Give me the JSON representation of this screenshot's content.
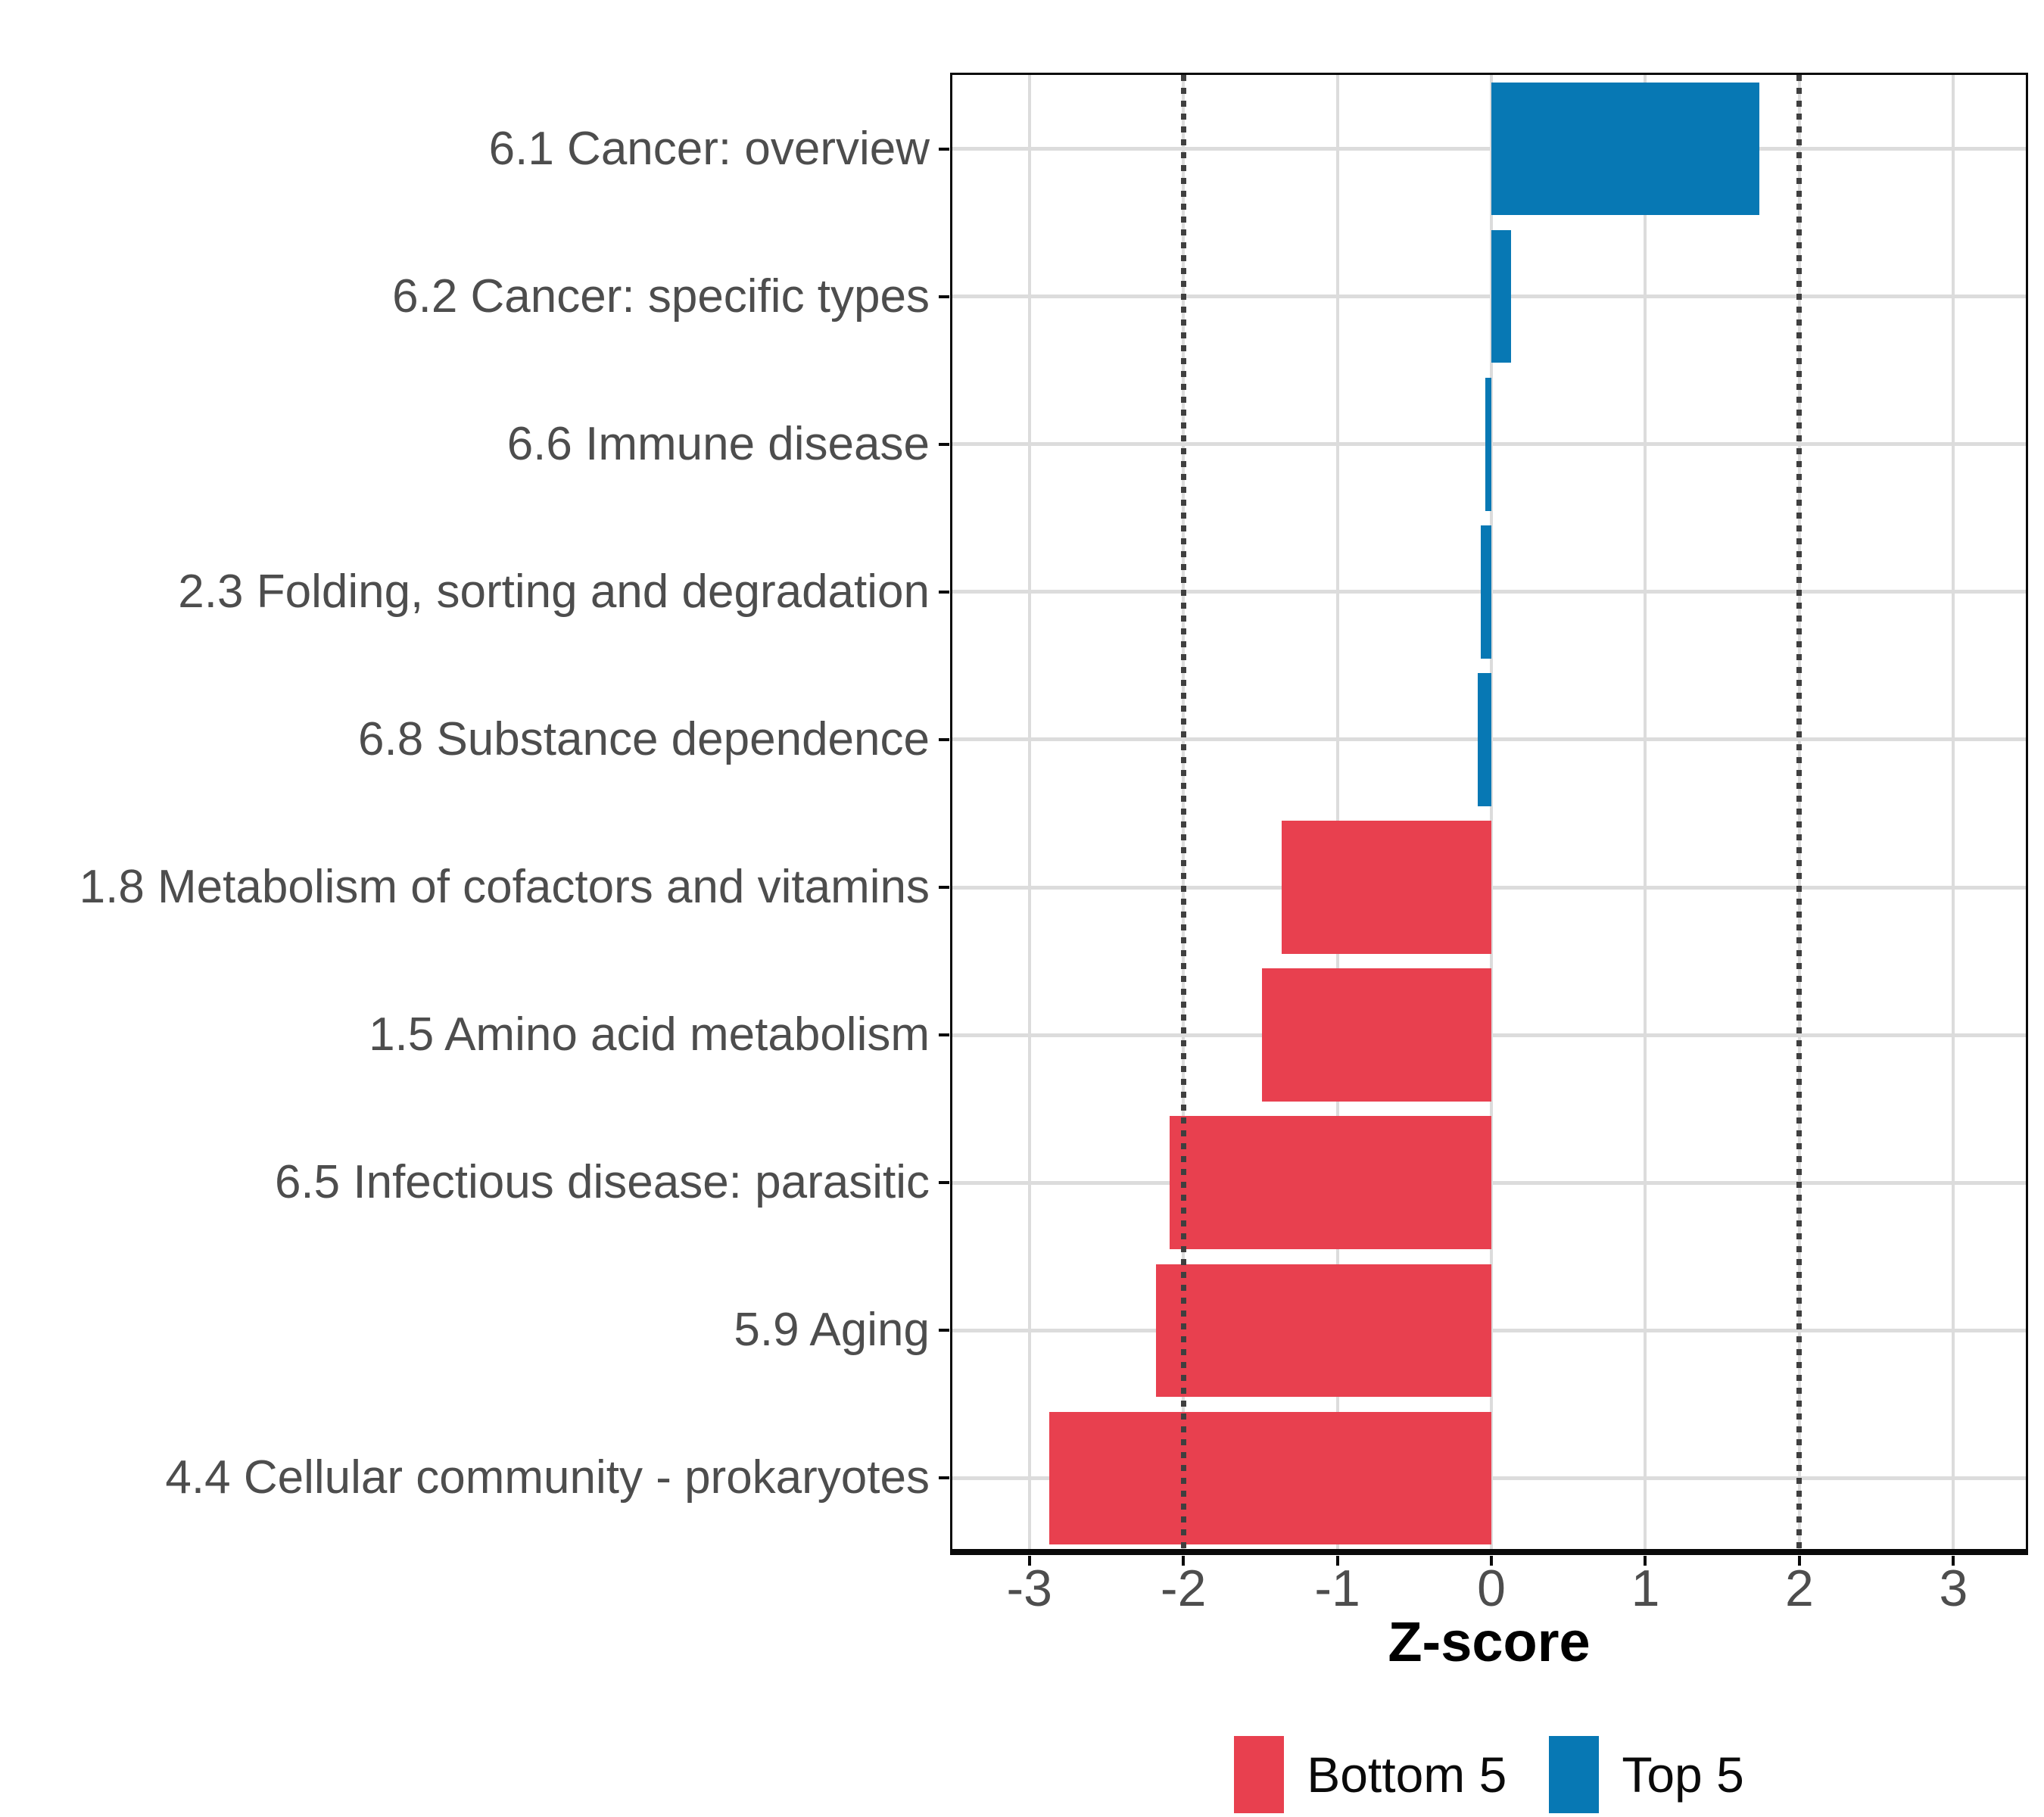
{
  "chart_data": {
    "type": "bar",
    "orientation": "horizontal",
    "title": "",
    "xlabel": "Z-score",
    "ylabel": "",
    "xlim": [
      -3.5,
      3.47
    ],
    "x_ticks": [
      -3,
      -2,
      -1,
      0,
      1,
      2,
      3
    ],
    "grid": true,
    "reference_lines": {
      "values": [
        -2,
        2
      ],
      "style": "dotted",
      "color": "#3f3f3f"
    },
    "legend_position": "bottom",
    "groups": [
      {
        "name": "Bottom 5",
        "color": "#E8404F"
      },
      {
        "name": "Top 5",
        "color": "#0778B4"
      }
    ],
    "bars": [
      {
        "label": "6.1 Cancer: overview",
        "value": 1.74,
        "group": "Top 5"
      },
      {
        "label": "6.2 Cancer: specific types",
        "value": 0.13,
        "group": "Top 5"
      },
      {
        "label": "6.6 Immune disease",
        "value": -0.04,
        "group": "Top 5"
      },
      {
        "label": "2.3 Folding, sorting and degradation",
        "value": -0.07,
        "group": "Top 5"
      },
      {
        "label": "6.8 Substance dependence",
        "value": -0.09,
        "group": "Top 5"
      },
      {
        "label": "1.8 Metabolism of cofactors and vitamins",
        "value": -1.36,
        "group": "Bottom 5"
      },
      {
        "label": "1.5 Amino acid metabolism",
        "value": -1.49,
        "group": "Bottom 5"
      },
      {
        "label": "6.5 Infectious disease: parasitic",
        "value": -2.09,
        "group": "Bottom 5"
      },
      {
        "label": "5.9 Aging",
        "value": -2.18,
        "group": "Bottom 5"
      },
      {
        "label": "4.4 Cellular community - prokaryotes",
        "value": -2.87,
        "group": "Bottom 5"
      }
    ]
  },
  "legend": {
    "items": [
      {
        "label": "Bottom 5",
        "color": "#E8404F"
      },
      {
        "label": "Top 5",
        "color": "#0778B4"
      }
    ]
  },
  "style_colors": {
    "axis_text": "#4d4d4d",
    "grid": "#dcdcdc",
    "panel_border": "#0a0a0a",
    "reference_line": "#3f3f3f"
  }
}
